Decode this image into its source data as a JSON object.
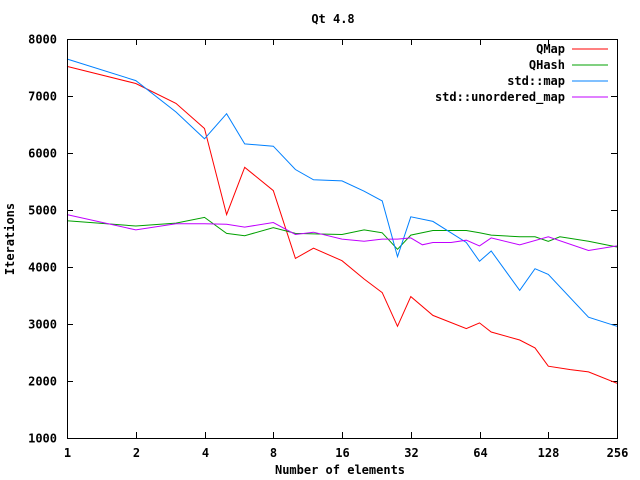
{
  "chart_data": {
    "type": "line",
    "title": "Qt 4.8",
    "xlabel": "Number of elements",
    "ylabel": "Iterations",
    "xscale": "log2",
    "xlim": [
      1,
      256
    ],
    "ylim": [
      1000,
      8000
    ],
    "x_ticks": [
      1,
      2,
      4,
      8,
      16,
      32,
      64,
      128,
      256
    ],
    "x_tick_labels": [
      "1",
      "2",
      "4",
      "8",
      "16",
      "32",
      "64",
      "128",
      "256"
    ],
    "y_ticks": [
      1000,
      2000,
      3000,
      4000,
      5000,
      6000,
      7000,
      8000
    ],
    "y_tick_labels": [
      "1000",
      "2000",
      "3000",
      "4000",
      "5000",
      "6000",
      "7000",
      "8000"
    ],
    "grid": false,
    "legend_position": "top-right",
    "series": [
      {
        "name": "QMap",
        "color": "#ff0000",
        "x": [
          1,
          2,
          3,
          4,
          5,
          6,
          8,
          10,
          12,
          16,
          20,
          24,
          28,
          32,
          40,
          56,
          64,
          72,
          96,
          112,
          128,
          160,
          192,
          256
        ],
        "y": [
          7520,
          7220,
          6870,
          6430,
          4920,
          5750,
          5340,
          4150,
          4330,
          4110,
          3790,
          3550,
          2960,
          3480,
          3150,
          2920,
          3020,
          2860,
          2720,
          2580,
          2260,
          2200,
          2160,
          1960
        ]
      },
      {
        "name": "QHash",
        "color": "#00a000",
        "x": [
          1,
          2,
          3,
          4,
          5,
          6,
          8,
          10,
          12,
          16,
          20,
          24,
          28,
          32,
          40,
          56,
          64,
          72,
          96,
          112,
          128,
          144,
          192,
          256
        ],
        "y": [
          4810,
          4720,
          4770,
          4870,
          4590,
          4550,
          4690,
          4590,
          4580,
          4570,
          4650,
          4600,
          4310,
          4560,
          4640,
          4640,
          4600,
          4560,
          4530,
          4530,
          4450,
          4530,
          4450,
          4350
        ]
      },
      {
        "name": "std::map",
        "color": "#0080ff",
        "x": [
          1,
          2,
          3,
          4,
          5,
          6,
          8,
          10,
          12,
          16,
          20,
          24,
          28,
          32,
          40,
          56,
          64,
          72,
          96,
          112,
          128,
          192,
          256
        ],
        "y": [
          7650,
          7270,
          6720,
          6250,
          6690,
          6160,
          6120,
          5710,
          5530,
          5510,
          5330,
          5160,
          4180,
          4880,
          4800,
          4430,
          4100,
          4280,
          3590,
          3970,
          3870,
          3120,
          2960
        ]
      },
      {
        "name": "std::unordered_map",
        "color": "#c000ff",
        "x": [
          1,
          2,
          3,
          4,
          5,
          6,
          8,
          10,
          12,
          16,
          20,
          24,
          28,
          32,
          36,
          40,
          48,
          56,
          64,
          72,
          96,
          128,
          192,
          256
        ],
        "y": [
          4920,
          4650,
          4760,
          4760,
          4750,
          4700,
          4780,
          4570,
          4610,
          4490,
          4450,
          4490,
          4490,
          4510,
          4390,
          4430,
          4430,
          4470,
          4370,
          4510,
          4390,
          4530,
          4290,
          4370
        ]
      }
    ]
  }
}
